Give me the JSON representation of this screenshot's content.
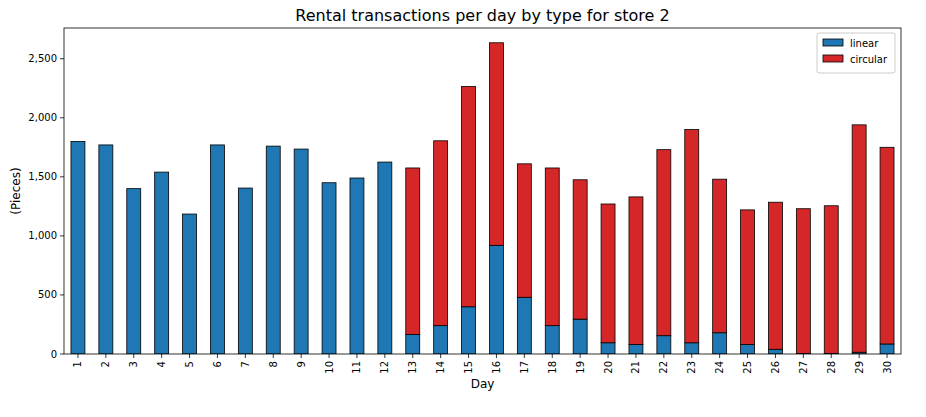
{
  "chart_data": {
    "type": "bar",
    "title": "Rental transactions per day by type for store 2",
    "x_label": "Day",
    "y_label": "(Pieces)",
    "categories": [
      "1",
      "2",
      "3",
      "4",
      "5",
      "6",
      "7",
      "8",
      "9",
      "10",
      "11",
      "12",
      "13",
      "14",
      "15",
      "16",
      "17",
      "18",
      "19",
      "20",
      "21",
      "22",
      "23",
      "24",
      "25",
      "26",
      "27",
      "28",
      "29",
      "30"
    ],
    "series": [
      {
        "name": "linear",
        "color": "#1f77b4",
        "values": [
          1800,
          1770,
          1400,
          1540,
          1185,
          1770,
          1405,
          1760,
          1735,
          1450,
          1490,
          1625,
          165,
          240,
          400,
          920,
          480,
          240,
          295,
          95,
          80,
          155,
          95,
          180,
          80,
          40,
          5,
          5,
          15,
          85
        ]
      },
      {
        "name": "circular",
        "color": "#d62728",
        "values": [
          0,
          0,
          0,
          0,
          0,
          0,
          0,
          0,
          0,
          0,
          0,
          0,
          1410,
          1565,
          1865,
          1715,
          1130,
          1335,
          1180,
          1175,
          1250,
          1575,
          1805,
          1300,
          1140,
          1245,
          1225,
          1250,
          1925,
          1665
        ]
      }
    ],
    "stacked": true,
    "grid": false,
    "legend": "upper right",
    "ylim": [
      0,
      2760
    ],
    "yticks": [
      0,
      500,
      {
        "value": 1000,
        "label": "1,000"
      },
      {
        "value": 1500,
        "label": "1,500"
      },
      {
        "value": 2000,
        "label": "2,000"
      },
      {
        "value": 2500,
        "label": "2,500"
      }
    ]
  }
}
